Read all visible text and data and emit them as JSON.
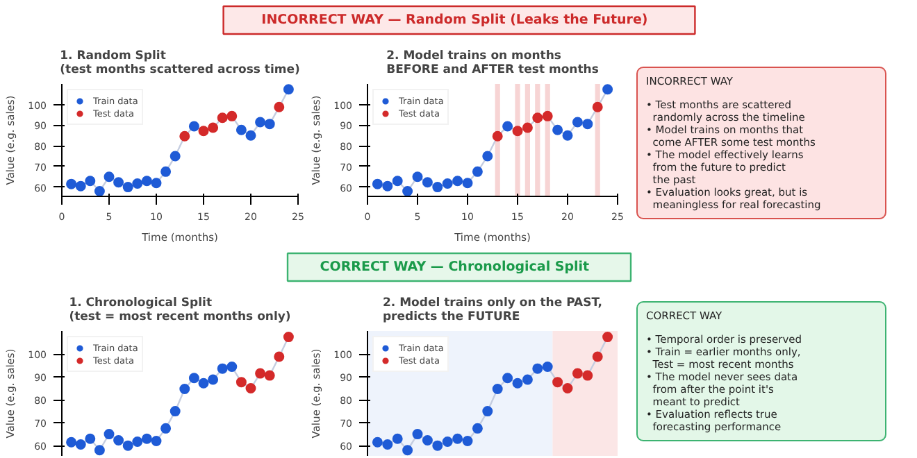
{
  "chart_data": [
    {
      "type": "other",
      "title": "INCORRECT WAY  —  Random Split (Leaks the Future)",
      "colors": [
        "#fde8e8",
        "#cc2a2a",
        "#cc2a2a"
      ]
    },
    {
      "type": "scatter",
      "title": "1. Random Split\n(test months scattered across time)",
      "xlabel": "Time (months)",
      "ylabel": "Value (e.g. sales)",
      "xlim": [
        0,
        25
      ],
      "xticks": [
        0,
        5,
        10,
        15,
        20,
        25
      ],
      "ylim": [
        55.5,
        110
      ],
      "yticks": [
        60,
        70,
        80,
        90,
        100
      ],
      "grid": false,
      "legend": "top left",
      "series": [
        {
          "type": "line",
          "color": "#c5cde0",
          "x": [
            1,
            2,
            3,
            4,
            5,
            6,
            7,
            8,
            9,
            10,
            11,
            12,
            13,
            14,
            15,
            16,
            17,
            18,
            19,
            20,
            21,
            22,
            23,
            24
          ],
          "values": [
            61.5,
            60.5,
            63,
            58,
            65,
            62.3,
            60,
            61.7,
            63,
            62,
            67.5,
            75,
            84.7,
            89.5,
            87.2,
            88.8,
            93.6,
            94.4,
            87.7,
            85,
            91.5,
            90.6,
            98.8,
            107.4
          ]
        },
        {
          "name": "Train data",
          "marker": "circle",
          "color": "#1f5bd6",
          "x": [
            1,
            2,
            3,
            4,
            5,
            6,
            7,
            8,
            9,
            10,
            11,
            12,
            14,
            19,
            20,
            21,
            22,
            24
          ],
          "values": [
            61.5,
            60.5,
            63,
            58,
            65,
            62.3,
            60,
            61.7,
            63,
            62,
            67.5,
            75,
            89.5,
            87.7,
            85,
            91.5,
            90.6,
            107.4
          ]
        },
        {
          "name": "Test data",
          "marker": "circle",
          "color": "#d42a2a",
          "x": [
            13,
            15,
            16,
            17,
            18,
            23
          ],
          "values": [
            84.7,
            87.2,
            88.8,
            93.6,
            94.4,
            98.8
          ]
        }
      ]
    },
    {
      "type": "scatter",
      "title": "2. Model trains on months\nBEFORE and AFTER test months",
      "xlabel": "Time (months)",
      "ylabel": "Value (e.g. sales)",
      "xlim": [
        0,
        25
      ],
      "xticks": [
        0,
        5,
        10,
        15,
        20,
        25
      ],
      "ylim": [
        55.5,
        110
      ],
      "yticks": [
        60,
        70,
        80,
        90,
        100
      ],
      "grid": false,
      "legend": "top left",
      "bands": [
        {
          "axis": "x",
          "from": 12.75,
          "to": 13.25,
          "color": "#f7d4d4"
        },
        {
          "axis": "x",
          "from": 14.75,
          "to": 15.25,
          "color": "#f7d4d4"
        },
        {
          "axis": "x",
          "from": 15.75,
          "to": 16.25,
          "color": "#f7d4d4"
        },
        {
          "axis": "x",
          "from": 16.75,
          "to": 17.25,
          "color": "#f7d4d4"
        },
        {
          "axis": "x",
          "from": 17.75,
          "to": 18.25,
          "color": "#f7d4d4"
        },
        {
          "axis": "x",
          "from": 22.75,
          "to": 23.25,
          "color": "#f7d4d4"
        }
      ],
      "series": [
        {
          "type": "line",
          "color": "#c5cde0",
          "x": [
            1,
            2,
            3,
            4,
            5,
            6,
            7,
            8,
            9,
            10,
            11,
            12,
            13,
            14,
            15,
            16,
            17,
            18,
            19,
            20,
            21,
            22,
            23,
            24
          ],
          "values": [
            61.5,
            60.5,
            63,
            58,
            65,
            62.3,
            60,
            61.7,
            63,
            62,
            67.5,
            75,
            84.7,
            89.5,
            87.2,
            88.8,
            93.6,
            94.4,
            87.7,
            85,
            91.5,
            90.6,
            98.8,
            107.4
          ]
        },
        {
          "name": "Train data",
          "marker": "circle",
          "color": "#1f5bd6",
          "x": [
            1,
            2,
            3,
            4,
            5,
            6,
            7,
            8,
            9,
            10,
            11,
            12,
            14,
            19,
            20,
            21,
            22,
            24
          ],
          "values": [
            61.5,
            60.5,
            63,
            58,
            65,
            62.3,
            60,
            61.7,
            63,
            62,
            67.5,
            75,
            89.5,
            87.7,
            85,
            91.5,
            90.6,
            107.4
          ]
        },
        {
          "name": "Test data",
          "marker": "circle",
          "color": "#d42a2a",
          "x": [
            13,
            15,
            16,
            17,
            18,
            23
          ],
          "values": [
            84.7,
            87.2,
            88.8,
            93.6,
            94.4,
            98.8
          ]
        }
      ]
    },
    {
      "type": "other",
      "title": "INCORRECT WAY",
      "colors": [
        "#fde3e3",
        "#d9534f",
        "#222222"
      ],
      "annotations": [
        "• Test months are scattered\n  randomly across the timeline",
        "• Model trains on months that\n  come AFTER some test months",
        "• The model effectively learns\n  from the future to predict\n  the past",
        "• Evaluation looks great, but is\n  meaningless for real forecasting"
      ]
    },
    {
      "type": "other",
      "title": "CORRECT WAY  —  Chronological Split",
      "colors": [
        "#e6f7ea",
        "#3cb371",
        "#1a9a4a"
      ]
    },
    {
      "type": "scatter",
      "title": "1. Chronological Split\n(test = most recent months only)",
      "ylabel": "Value (e.g. sales)",
      "xlim": [
        0,
        25
      ],
      "ylim": [
        55.5,
        110
      ],
      "yticks": [
        60,
        70,
        80,
        90,
        100
      ],
      "tick_labels": "y",
      "grid": false,
      "legend": "top left",
      "series": [
        {
          "type": "line",
          "color": "#c5cde0",
          "x": [
            1,
            2,
            3,
            4,
            5,
            6,
            7,
            8,
            9,
            10,
            11,
            12,
            13,
            14,
            15,
            16,
            17,
            18,
            19,
            20,
            21,
            22,
            23,
            24
          ],
          "values": [
            61.5,
            60.5,
            63,
            58,
            65,
            62.3,
            60,
            61.7,
            63,
            62,
            67.5,
            75,
            84.7,
            89.5,
            87.2,
            88.8,
            93.6,
            94.4,
            87.7,
            85,
            91.5,
            90.6,
            98.8,
            107.4
          ]
        },
        {
          "name": "Train data",
          "marker": "circle",
          "color": "#1f5bd6",
          "x": [
            1,
            2,
            3,
            4,
            5,
            6,
            7,
            8,
            9,
            10,
            11,
            12,
            13,
            14,
            15,
            16,
            17,
            18
          ],
          "values": [
            61.5,
            60.5,
            63,
            58,
            65,
            62.3,
            60,
            61.7,
            63,
            62,
            67.5,
            75,
            84.7,
            89.5,
            87.2,
            88.8,
            93.6,
            94.4
          ]
        },
        {
          "name": "Test data",
          "marker": "circle",
          "color": "#d42a2a",
          "x": [
            19,
            20,
            21,
            22,
            23,
            24
          ],
          "values": [
            87.7,
            85,
            91.5,
            90.6,
            98.8,
            107.4
          ]
        }
      ]
    },
    {
      "type": "scatter",
      "title": "2. Model trains only on the PAST,\npredicts the FUTURE",
      "ylabel": "Value (e.g. sales)",
      "xlim": [
        0,
        25
      ],
      "ylim": [
        55.5,
        110
      ],
      "yticks": [
        60,
        70,
        80,
        90,
        100
      ],
      "tick_labels": "y",
      "grid": false,
      "legend": "top left",
      "bands": [
        {
          "axis": "x",
          "from": 0,
          "to": 18.5,
          "color": "#eef3fc"
        },
        {
          "axis": "x",
          "from": 18.5,
          "to": 25,
          "color": "#fbe6e6"
        }
      ],
      "series": [
        {
          "type": "line",
          "color": "#c5cde0",
          "x": [
            1,
            2,
            3,
            4,
            5,
            6,
            7,
            8,
            9,
            10,
            11,
            12,
            13,
            14,
            15,
            16,
            17,
            18,
            19,
            20,
            21,
            22,
            23,
            24
          ],
          "values": [
            61.5,
            60.5,
            63,
            58,
            65,
            62.3,
            60,
            61.7,
            63,
            62,
            67.5,
            75,
            84.7,
            89.5,
            87.2,
            88.8,
            93.6,
            94.4,
            87.7,
            85,
            91.5,
            90.6,
            98.8,
            107.4
          ]
        },
        {
          "name": "Train data",
          "marker": "circle",
          "color": "#1f5bd6",
          "x": [
            1,
            2,
            3,
            4,
            5,
            6,
            7,
            8,
            9,
            10,
            11,
            12,
            13,
            14,
            15,
            16,
            17,
            18
          ],
          "values": [
            61.5,
            60.5,
            63,
            58,
            65,
            62.3,
            60,
            61.7,
            63,
            62,
            67.5,
            75,
            84.7,
            89.5,
            87.2,
            88.8,
            93.6,
            94.4
          ]
        },
        {
          "name": "Test data",
          "marker": "circle",
          "color": "#d42a2a",
          "x": [
            19,
            20,
            21,
            22,
            23,
            24
          ],
          "values": [
            87.7,
            85,
            91.5,
            90.6,
            98.8,
            107.4
          ]
        }
      ]
    },
    {
      "type": "other",
      "title": "CORRECT WAY",
      "colors": [
        "#e3f7e8",
        "#3cb371",
        "#222222"
      ],
      "annotations": [
        "• Temporal order is preserved",
        "• Train = earlier months only,\n  Test = most recent months",
        "• The model never sees data\n  from after the point it's\n  meant to predict",
        "• Evaluation reflects true\n  forecasting performance"
      ]
    }
  ]
}
